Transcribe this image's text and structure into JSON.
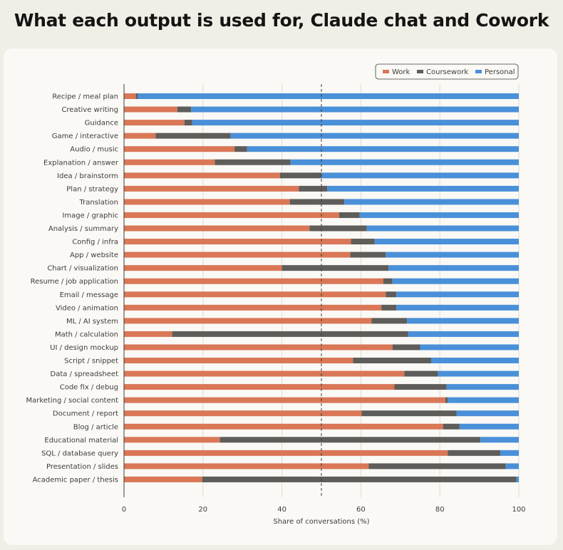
{
  "title": "What each output is used for, Claude chat and Cowork",
  "colors": {
    "work": "#d97757",
    "coursework": "#5e5d59",
    "personal": "#4a90d9",
    "grid": "#dedcd3",
    "reference_line": "#3d3d3a"
  },
  "chart_data": {
    "type": "bar",
    "orientation": "horizontal",
    "stacked": true,
    "categories": [
      "Recipe / meal plan",
      "Creative writing",
      "Guidance",
      "Game / interactive",
      "Audio / music",
      "Explanation / answer",
      "Idea / brainstorm",
      "Plan / strategy",
      "Translation",
      "Image / graphic",
      "Analysis / summary",
      "Config / infra",
      "App / website",
      "Chart / visualization",
      "Resume / job application",
      "Email / message",
      "Video / animation",
      "ML / AI system",
      "Math / calculation",
      "UI / design mockup",
      "Script / snippet",
      "Data / spreadsheet",
      "Code fix / debug",
      "Marketing / social content",
      "Document / report",
      "Blog / article",
      "Educational material",
      "SQL / database query",
      "Presentation / slides",
      "Academic paper / thesis"
    ],
    "series": [
      {
        "name": "Work",
        "values": [
          3,
          13.5,
          15.3,
          8,
          28,
          23,
          39.5,
          44.3,
          42,
          54.5,
          47,
          57.5,
          57.3,
          40,
          65.7,
          66.3,
          65.2,
          62.7,
          12.2,
          68,
          58,
          71,
          68.5,
          81.4,
          60.2,
          80.8,
          24.3,
          82,
          62,
          19.8
        ]
      },
      {
        "name": "Coursework",
        "values": [
          0.5,
          3.5,
          2,
          19,
          3.2,
          19.2,
          10.5,
          7.2,
          13.8,
          5.2,
          14.5,
          6,
          9,
          27,
          2.3,
          2.7,
          3.8,
          9,
          59.8,
          7,
          19.8,
          8.5,
          13.2,
          0.6,
          24,
          4.2,
          66,
          13.3,
          34.7,
          79.6
        ]
      },
      {
        "name": "Personal",
        "values": [
          96.5,
          83,
          82.7,
          73,
          68.8,
          57.8,
          50,
          48.5,
          44.2,
          40.3,
          38.5,
          36.5,
          33.7,
          33,
          32,
          31,
          31,
          28.3,
          28,
          25,
          22.2,
          20.5,
          18.3,
          18,
          15.8,
          15,
          9.7,
          4.7,
          3.3,
          0.6
        ]
      }
    ],
    "xlabel": "Share of conversations (%)",
    "ylabel": "",
    "xlim": [
      0,
      100
    ],
    "xticks": [
      0,
      20,
      40,
      60,
      80,
      100
    ],
    "reference_line": 50,
    "grid": true,
    "legend": [
      "Work",
      "Coursework",
      "Personal"
    ],
    "legend_position": "top-right"
  }
}
